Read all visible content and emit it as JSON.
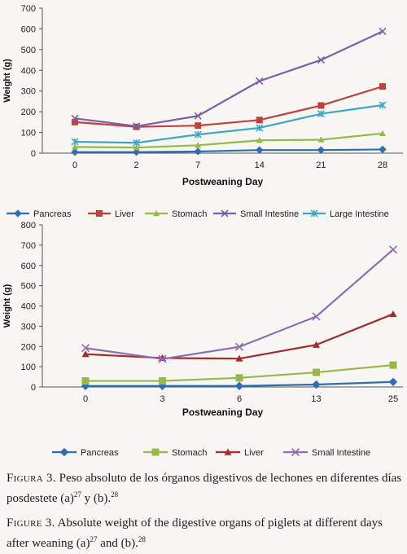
{
  "chart_data": [
    {
      "type": "line",
      "title": "",
      "xlabel": "Postweaning Day",
      "ylabel": "Weight (g)",
      "categories": [
        "0",
        "2",
        "7",
        "14",
        "21",
        "28"
      ],
      "ylim": [
        0,
        700
      ],
      "yticks": [
        0,
        100,
        200,
        300,
        400,
        500,
        600,
        700
      ],
      "grid": false,
      "legend_position": "bottom",
      "series": [
        {
          "name": "Pancreas",
          "color": "#2e6db4",
          "marker": "diamond",
          "values": [
            5,
            5,
            8,
            15,
            15,
            18
          ]
        },
        {
          "name": "Liver",
          "color": "#c0403c",
          "marker": "square",
          "values": [
            150,
            127,
            133,
            160,
            230,
            322
          ]
        },
        {
          "name": "Stomach",
          "color": "#96b948",
          "marker": "triangle",
          "values": [
            30,
            27,
            38,
            62,
            65,
            95
          ]
        },
        {
          "name": "Small Intestine",
          "color": "#7e5ea6",
          "marker": "x",
          "values": [
            168,
            130,
            180,
            348,
            450,
            588
          ]
        },
        {
          "name": "Large Intestine",
          "color": "#3aa8c4",
          "marker": "star",
          "values": [
            55,
            50,
            90,
            122,
            190,
            232
          ]
        }
      ]
    },
    {
      "type": "line",
      "title": "",
      "xlabel": "Postweaning Day",
      "ylabel": "Weight (g)",
      "categories": [
        "0",
        "3",
        "6",
        "13",
        "25"
      ],
      "ylim": [
        0,
        800
      ],
      "yticks": [
        0,
        100,
        200,
        300,
        400,
        500,
        600,
        700,
        800
      ],
      "grid": false,
      "legend_position": "bottom",
      "series": [
        {
          "name": "Pancreas",
          "color": "#2e6db4",
          "marker": "diamond",
          "values": [
            5,
            5,
            5,
            12,
            25
          ]
        },
        {
          "name": "Stomach",
          "color": "#96b948",
          "marker": "square",
          "values": [
            30,
            30,
            45,
            72,
            108
          ]
        },
        {
          "name": "Liver",
          "color": "#a52a2a",
          "marker": "triangle",
          "values": [
            162,
            143,
            140,
            208,
            360
          ]
        },
        {
          "name": "Small Intestine",
          "color": "#8e6cb3",
          "marker": "x",
          "values": [
            192,
            138,
            198,
            348,
            678
          ]
        }
      ]
    }
  ],
  "captions": {
    "es": {
      "label": "Figura 3.",
      "text": "Peso absoluto de los órganos digestivos de lechones en diferentes días posdestete (a)",
      "ref1": "27",
      "mid": " y (b).",
      "ref2": "28"
    },
    "en": {
      "label": "Figure 3.",
      "text": "Absolute weight of the digestive organs of piglets at different days after weaning (a)",
      "ref1": "27",
      "mid": " and (b).",
      "ref2": "28"
    }
  }
}
